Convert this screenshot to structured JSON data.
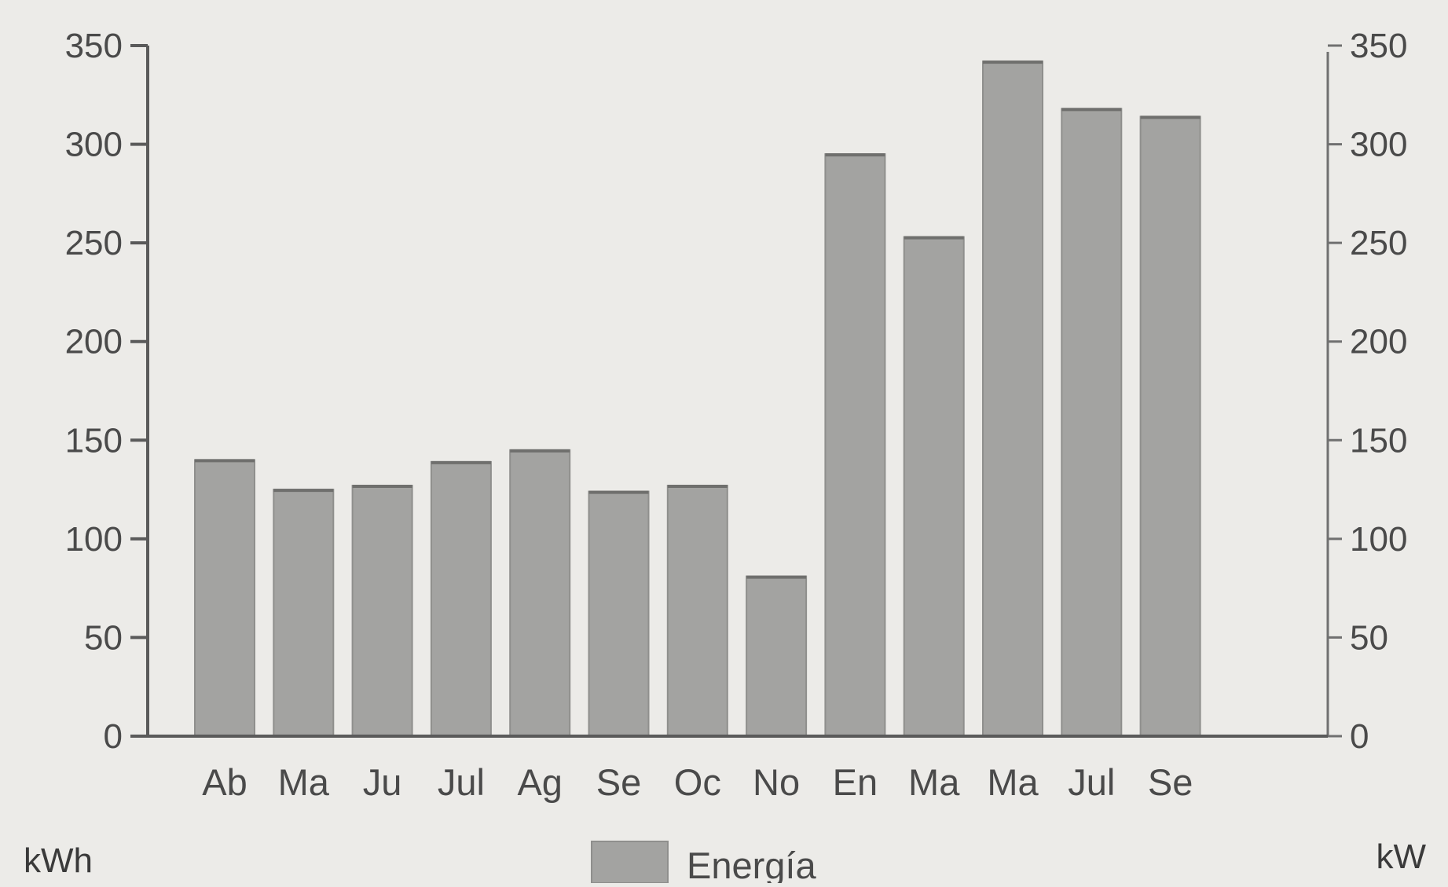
{
  "chart_data": {
    "type": "bar",
    "categories": [
      "Ab",
      "Ma",
      "Ju",
      "Jul",
      "Ag",
      "Se",
      "Oc",
      "No",
      "En",
      "Ma",
      "Ma",
      "Jul",
      "Se"
    ],
    "series": [
      {
        "name": "Energía",
        "values": [
          140,
          125,
          127,
          139,
          145,
          124,
          127,
          81,
          295,
          253,
          342,
          318,
          314
        ]
      }
    ],
    "ylim": [
      0,
      350
    ],
    "y_ticks": [
      0,
      50,
      100,
      150,
      200,
      250,
      300,
      350
    ],
    "y2lim": [
      0,
      350
    ],
    "y2_ticks": [
      0,
      50,
      100,
      150,
      200,
      250,
      300,
      350
    ],
    "ylabel": "kWh",
    "y2label": "kW",
    "legend_position": "bottom-center",
    "grid": false,
    "colors": {
      "bar": "#a3a3a1",
      "axis": "#5a5a5a",
      "background": "#ecebe8"
    }
  }
}
